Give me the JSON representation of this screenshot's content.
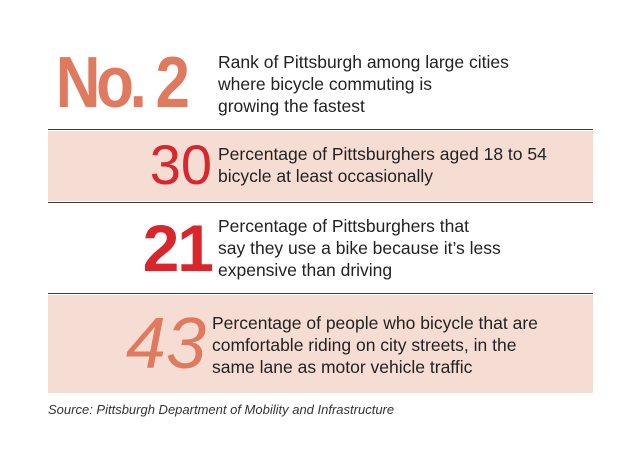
{
  "stats": [
    {
      "number": "No. 2",
      "lines": [
        "Rank of Pittsburgh among large cities",
        "where bicycle commuting is",
        "growing the fastest"
      ]
    },
    {
      "number": "30",
      "lines": [
        "Percentage of Pittsburghers aged 18 to 54",
        "bicycle at least occasionally"
      ]
    },
    {
      "number": "21",
      "lines": [
        "Percentage of Pittsburghers that",
        "say they use a bike because it’s less",
        "expensive than driving"
      ]
    },
    {
      "number": "43",
      "lines": [
        "Percentage of people who bicycle that are",
        "comfortable riding on city streets, in the",
        "same lane as motor vehicle traffic"
      ]
    }
  ],
  "source": "Source: Pittsburgh Department of Mobility and Infrastructure",
  "colors": {
    "salmon": "#e07a5f",
    "red": "#d9252c",
    "band": "#f6ddd3",
    "text": "#222222"
  }
}
